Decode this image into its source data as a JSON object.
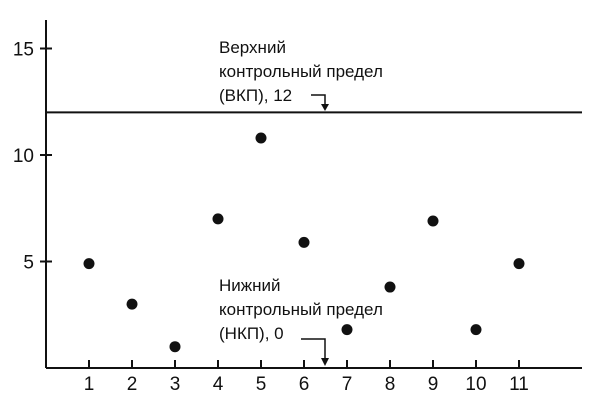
{
  "chart_data": {
    "type": "scatter",
    "x": [
      1,
      2,
      3,
      4,
      5,
      6,
      7,
      8,
      9,
      10,
      11
    ],
    "y": [
      4.9,
      3.0,
      1.0,
      7.0,
      10.8,
      5.9,
      1.8,
      3.8,
      6.9,
      1.8,
      4.9
    ],
    "xticks": [
      "1",
      "2",
      "3",
      "4",
      "5",
      "6",
      "7",
      "8",
      "9",
      "10",
      "11"
    ],
    "yticks": [
      "5",
      "10",
      "15"
    ],
    "ylim": [
      0,
      16.5
    ],
    "xlim": [
      0,
      12.6
    ],
    "grid": false,
    "ucl": {
      "value": 12,
      "label_lines": [
        "Верхний",
        "контрольный предел",
        "(ВКП), 12"
      ]
    },
    "lcl": {
      "value": 0,
      "label_lines": [
        "Нижний",
        "контрольный предел",
        "(НКП), 0"
      ]
    }
  }
}
